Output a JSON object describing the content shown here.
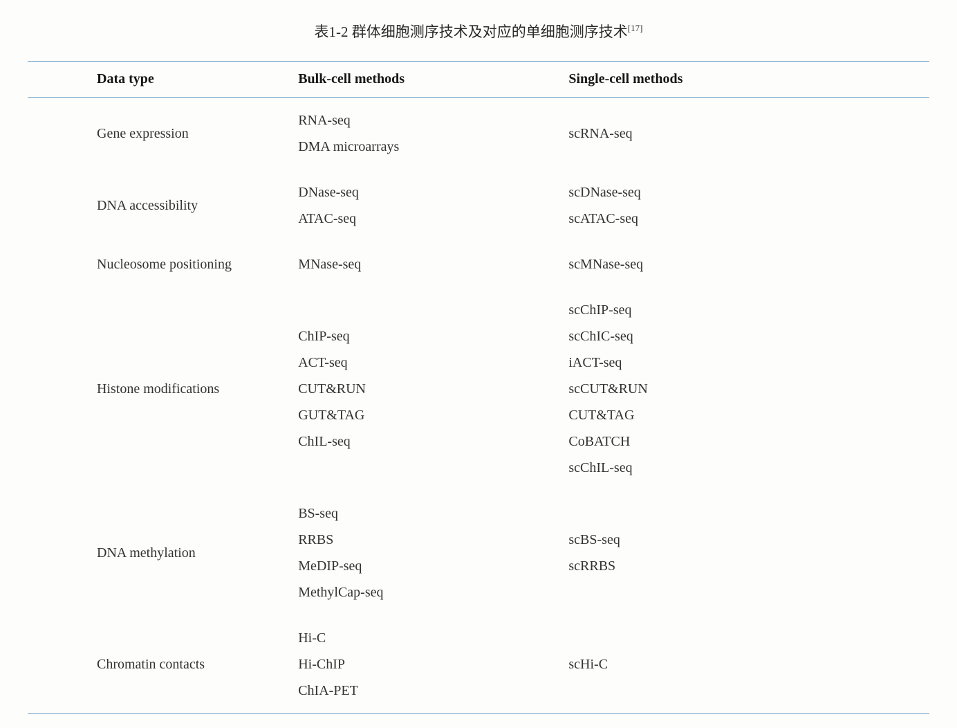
{
  "caption": {
    "prefix": "表1-2 群体细胞测序技术及对应的单细胞测序技术",
    "citation": "[17]"
  },
  "table": {
    "type": "table",
    "border_color": "#6ea0c9",
    "background_color": "#fdfdfb",
    "header_fontsize": 20,
    "body_fontsize": 20,
    "line_height": 1.9,
    "columns": [
      {
        "key": "data_type",
        "label": "Data type"
      },
      {
        "key": "bulk",
        "label": "Bulk-cell methods"
      },
      {
        "key": "single",
        "label": "Single-cell methods"
      }
    ],
    "rows": [
      {
        "data_type": "Gene expression",
        "bulk": [
          "RNA-seq",
          "DMA microarrays"
        ],
        "single": [
          "scRNA-seq"
        ]
      },
      {
        "data_type": "DNA accessibility",
        "bulk": [
          "DNase-seq",
          "ATAC-seq"
        ],
        "single": [
          "scDNase-seq",
          "scATAC-seq"
        ]
      },
      {
        "data_type": "Nucleosome positioning",
        "bulk": [
          "MNase-seq"
        ],
        "single": [
          "scMNase-seq"
        ]
      },
      {
        "data_type": "Histone modifications",
        "bulk": [
          "ChIP-seq",
          "ACT-seq",
          "CUT&RUN",
          "GUT&TAG",
          "ChIL-seq"
        ],
        "single": [
          "scChIP-seq",
          "scChIC-seq",
          "iACT-seq",
          "scCUT&RUN",
          "CUT&TAG",
          "CoBATCH",
          "scChIL-seq"
        ]
      },
      {
        "data_type": "DNA methylation",
        "bulk": [
          "BS-seq",
          "RRBS",
          "MeDIP-seq",
          "MethylCap-seq"
        ],
        "single": [
          "scBS-seq",
          "scRRBS"
        ]
      },
      {
        "data_type": "Chromatin contacts",
        "bulk": [
          "Hi-C",
          "Hi-ChIP",
          "ChIA-PET"
        ],
        "single": [
          "scHi-C"
        ]
      }
    ]
  }
}
